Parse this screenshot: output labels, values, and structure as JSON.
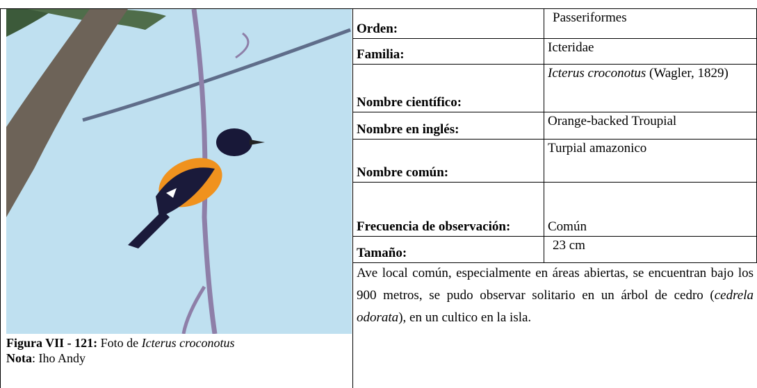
{
  "figure": {
    "caption": {
      "label": "Figura VII - 121:",
      "text": "Foto de",
      "species": "Icterus croconotus"
    },
    "note": {
      "label": "Nota",
      "text": ": Iho Andy"
    }
  },
  "table": {
    "rows": [
      {
        "label": "Orden:",
        "value": [
          "Passeriformes"
        ]
      },
      {
        "label": "Familia:",
        "value": [
          "Icteridae"
        ]
      },
      {
        "label": "Nombre científico:",
        "value": [
          "Icterus croconotus",
          "(Wagler, 1829)"
        ]
      },
      {
        "label": "Nombre en inglés:",
        "value": [
          "Orange-backed Troupial"
        ]
      },
      {
        "label": "Nombre común:",
        "value": [
          "Turpial amazonico"
        ]
      },
      {
        "label": "Frecuencia de observación:",
        "value": [
          "Común"
        ]
      },
      {
        "label": "Tamaño:",
        "value": [
          "23 cm"
        ]
      }
    ],
    "description": [
      "Ave local común, especialmente en áreas abiertas, se encuentran bajo los 900 metros, se pudo observar solitario en un árbol de cedro (",
      "cedrela odorata",
      "), en un cultico en la isla."
    ]
  }
}
